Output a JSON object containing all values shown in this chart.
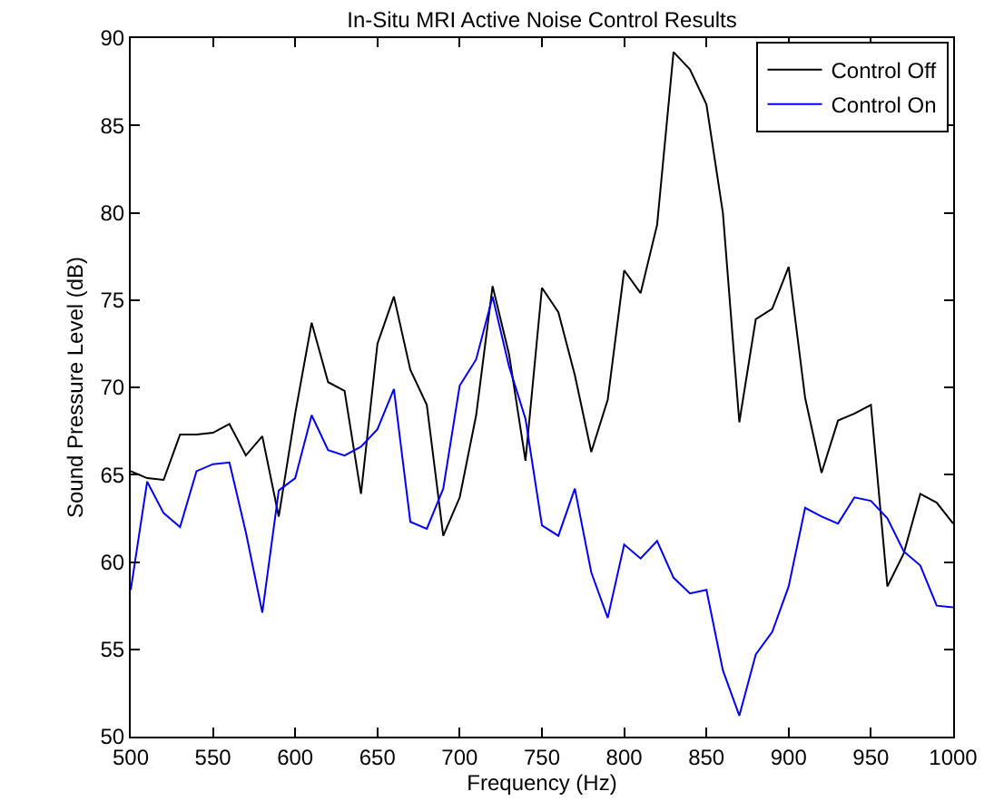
{
  "chart_data": {
    "type": "line",
    "title": "In-Situ MRI Active Noise Control Results",
    "xlabel": "Frequency (Hz)",
    "ylabel": "Sound Pressure Level (dB)",
    "x": [
      500,
      510,
      520,
      530,
      540,
      550,
      560,
      570,
      580,
      590,
      600,
      610,
      620,
      630,
      640,
      650,
      660,
      670,
      680,
      690,
      700,
      710,
      720,
      730,
      740,
      750,
      760,
      770,
      780,
      790,
      800,
      810,
      820,
      830,
      840,
      850,
      860,
      870,
      880,
      890,
      900,
      910,
      920,
      930,
      940,
      950,
      960,
      970,
      980,
      990,
      1000
    ],
    "series": [
      {
        "name": "Control Off",
        "color": "#000000",
        "values": [
          65.2,
          64.8,
          64.7,
          67.3,
          67.3,
          67.4,
          67.9,
          66.1,
          67.2,
          62.6,
          68.5,
          73.7,
          70.3,
          69.8,
          63.9,
          72.5,
          75.2,
          71.0,
          69.0,
          61.5,
          63.7,
          68.4,
          75.8,
          71.9,
          65.8,
          75.7,
          74.3,
          70.7,
          66.3,
          69.3,
          76.7,
          75.4,
          79.3,
          89.2,
          88.2,
          86.2,
          80.0,
          68.0,
          73.9,
          74.5,
          76.9,
          69.4,
          65.1,
          68.1,
          68.5,
          69.0,
          58.6,
          60.5,
          63.9,
          63.4,
          62.2
        ]
      },
      {
        "name": "Control On",
        "color": "#0000ff",
        "values": [
          58.4,
          64.6,
          62.8,
          62.0,
          65.2,
          65.6,
          65.7,
          61.7,
          57.1,
          64.1,
          64.8,
          68.4,
          66.4,
          66.1,
          66.6,
          67.6,
          69.9,
          62.3,
          61.9,
          64.2,
          70.1,
          71.6,
          75.2,
          71.2,
          68.2,
          62.1,
          61.5,
          64.2,
          59.4,
          56.8,
          61.0,
          60.2,
          61.2,
          59.1,
          58.2,
          58.4,
          53.8,
          51.2,
          54.7,
          56.0,
          58.6,
          63.1,
          62.6,
          62.2,
          63.7,
          63.5,
          62.5,
          60.6,
          59.8,
          57.5,
          57.4
        ]
      }
    ],
    "xlim": [
      500,
      1000
    ],
    "xticks": [
      500,
      550,
      600,
      650,
      700,
      750,
      800,
      850,
      900,
      950,
      1000
    ],
    "ylim": [
      50,
      90
    ],
    "yticks": [
      50,
      55,
      60,
      65,
      70,
      75,
      80,
      85,
      90
    ],
    "legend": "top right",
    "marker": "none",
    "line_style": "solid"
  }
}
